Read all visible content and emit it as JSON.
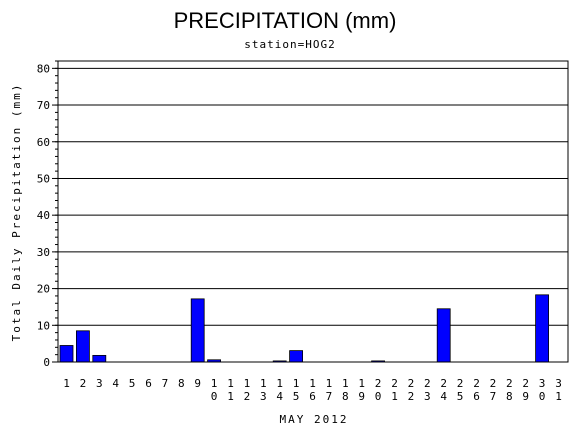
{
  "chart_data": {
    "type": "bar",
    "title": "PRECIPITATION (mm)",
    "subtitle": "station=HOG2",
    "xlabel": "MAY 2012",
    "ylabel": "Total Daily Precipitation (mm)",
    "ylim": [
      0,
      82
    ],
    "yticks": [
      "0",
      "10",
      "20",
      "30",
      "40",
      "50",
      "60",
      "70",
      "80"
    ],
    "grid": true,
    "bar_color": "#0000ff",
    "categories": [
      "1",
      "2",
      "3",
      "4",
      "5",
      "6",
      "7",
      "8",
      "9",
      "10",
      "11",
      "12",
      "13",
      "14",
      "15",
      "16",
      "17",
      "18",
      "19",
      "20",
      "21",
      "22",
      "23",
      "24",
      "25",
      "26",
      "27",
      "28",
      "29",
      "30",
      "31"
    ],
    "values": [
      4.5,
      8.5,
      1.8,
      0,
      0,
      0,
      0,
      0,
      17.2,
      0.6,
      0,
      0,
      0,
      0.3,
      3.1,
      0,
      0,
      0,
      0,
      0.3,
      0,
      0,
      0,
      14.5,
      0,
      0,
      0,
      0,
      0,
      18.3,
      0
    ]
  }
}
